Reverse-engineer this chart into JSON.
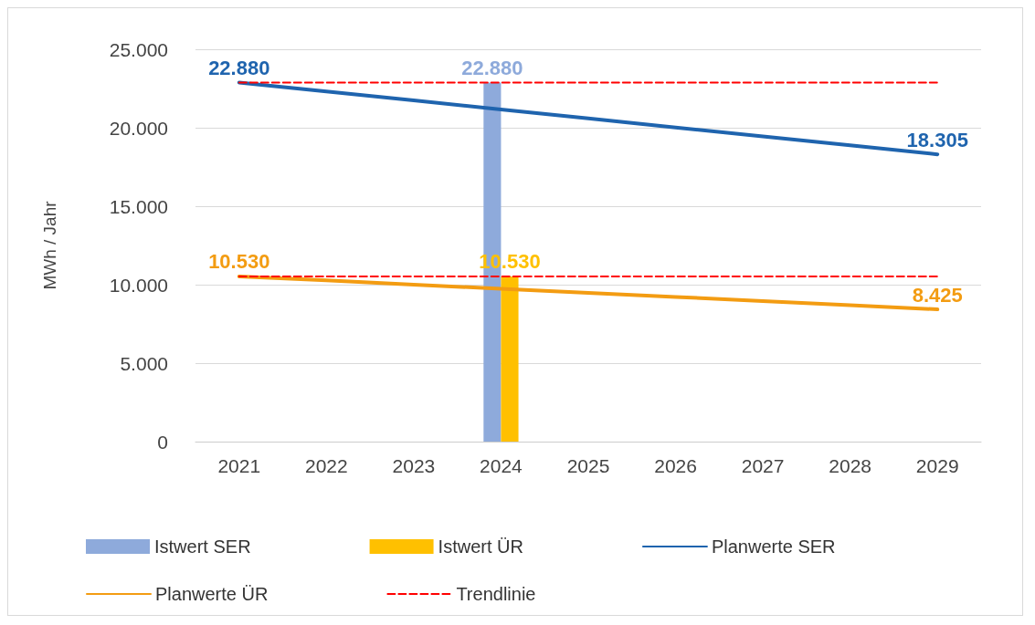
{
  "chart_data": {
    "type": "bar",
    "ylabel": "MWh / Jahr",
    "categories": [
      "2021",
      "2022",
      "2023",
      "2024",
      "2025",
      "2026",
      "2027",
      "2028",
      "2029"
    ],
    "series": [
      {
        "name": "Istwert SER",
        "color": "#8eaadb",
        "values": [
          null,
          null,
          null,
          22880,
          null,
          null,
          null,
          null,
          null
        ],
        "value_labels": [
          null,
          null,
          null,
          "22.880",
          null,
          null,
          null,
          null,
          null
        ]
      },
      {
        "name": "Istwert ÜR",
        "color": "#ffc000",
        "values": [
          null,
          null,
          null,
          10530,
          null,
          null,
          null,
          null,
          null
        ],
        "value_labels": [
          null,
          null,
          null,
          "10.530",
          null,
          null,
          null,
          null,
          null
        ]
      },
      {
        "name": "Planwerte SER",
        "type": "line",
        "color": "#1f64ae",
        "values": [
          22880,
          22310,
          21740,
          21160,
          20590,
          20020,
          19450,
          18880,
          18305
        ],
        "value_labels": [
          "22.880",
          null,
          null,
          null,
          null,
          null,
          null,
          null,
          "18.305"
        ]
      },
      {
        "name": "Planwerte ÜR",
        "type": "line",
        "color": "#f39c12",
        "values": [
          10530,
          10270,
          10000,
          9740,
          9480,
          9220,
          8950,
          8690,
          8425
        ],
        "value_labels": [
          "10.530",
          null,
          null,
          null,
          null,
          null,
          null,
          null,
          "8.425"
        ]
      },
      {
        "name": "Trendlinie",
        "type": "line",
        "color": "#ff0000",
        "line_style": "dashed",
        "values": [
          22880,
          22880,
          22880,
          22880,
          22880,
          22880,
          22880,
          22880,
          22880
        ]
      },
      {
        "type": "line",
        "color": "#ff0000",
        "line_style": "dashed",
        "values": [
          10530,
          10530,
          10530,
          10530,
          10530,
          10530,
          10530,
          10530,
          10530
        ]
      }
    ],
    "ylim": [
      0,
      25000
    ],
    "yticks": [
      {
        "value": 0,
        "label": "0"
      },
      {
        "value": 5000,
        "label": "5.000"
      },
      {
        "value": 10000,
        "label": "10.000"
      },
      {
        "value": 15000,
        "label": "15.000"
      },
      {
        "value": 20000,
        "label": "20.000"
      },
      {
        "value": 25000,
        "label": "25.000"
      }
    ],
    "grid": "y",
    "legend": "bottom",
    "marker": "none"
  }
}
